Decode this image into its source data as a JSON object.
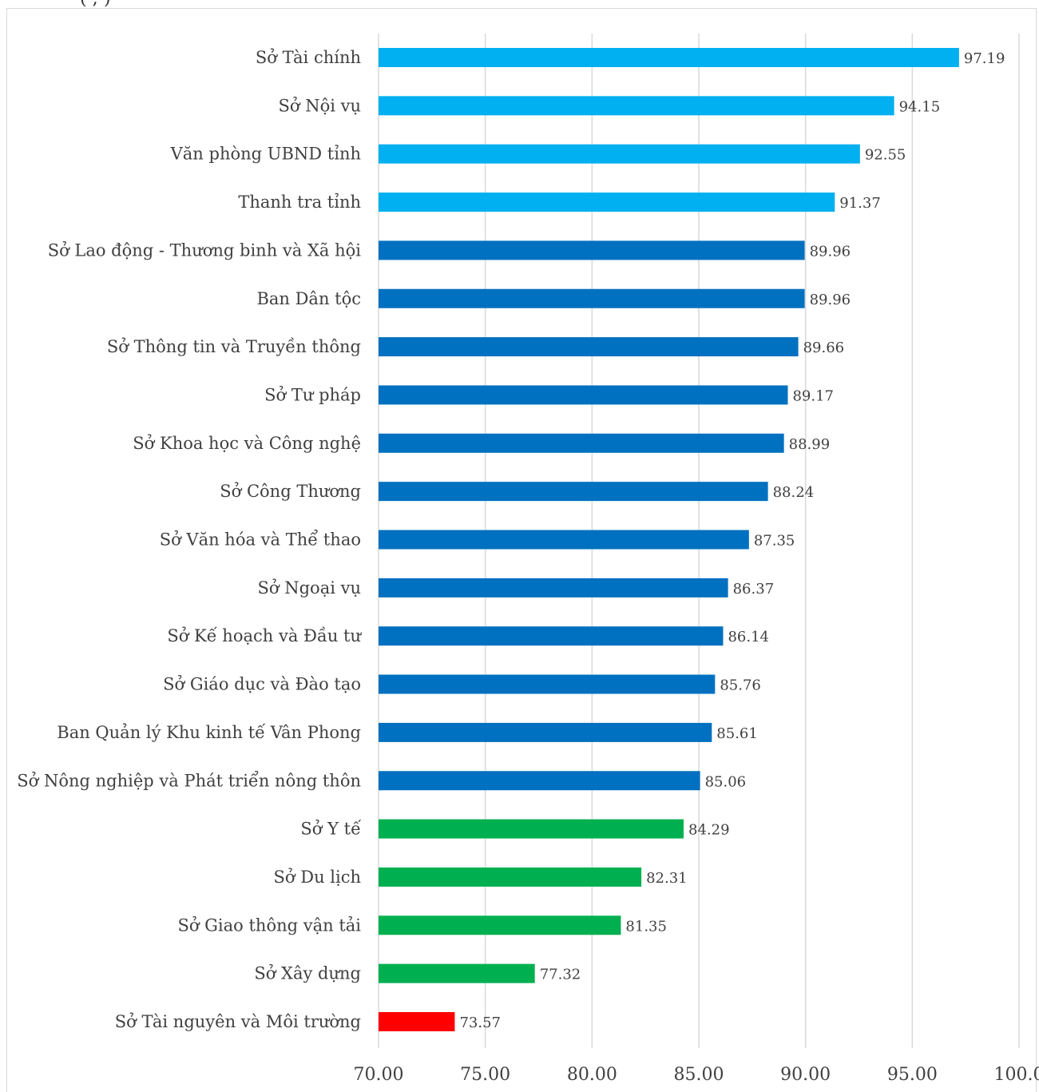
{
  "page": {
    "top_fragment": "(                    ;  )"
  },
  "chart_data": {
    "type": "bar",
    "orientation": "horizontal",
    "categories": [
      "Sở Tài chính",
      "Sở Nội vụ",
      "Văn phòng UBND tỉnh",
      "Thanh tra tỉnh",
      "Sở Lao động - Thương binh và Xã hội",
      "Ban Dân tộc",
      "Sở Thông tin và Truyền thông",
      "Sở Tư pháp",
      "Sở Khoa học và Công nghệ",
      "Sở Công Thương",
      "Sở Văn hóa và Thể thao",
      "Sở Ngoại vụ",
      "Sở Kế hoạch và Đầu tư",
      "Sở Giáo dục và Đào tạo",
      "Ban Quản lý Khu kinh tế Vân Phong",
      "Sở Nông nghiệp và Phát triển nông thôn",
      "Sở Y tế",
      "Sở Du lịch",
      "Sở Giao thông vận tải",
      "Sở Xây dựng",
      "Sở Tài nguyên và Môi trường"
    ],
    "values": [
      97.19,
      94.15,
      92.55,
      91.37,
      89.96,
      89.96,
      89.66,
      89.17,
      88.99,
      88.24,
      87.35,
      86.37,
      86.14,
      85.76,
      85.61,
      85.06,
      84.29,
      82.31,
      81.35,
      77.32,
      73.57
    ],
    "value_labels": [
      "97.19",
      "94.15",
      "92.55",
      "91.37",
      "89.96",
      "89.96",
      "89.66",
      "89.17",
      "88.99",
      "88.24",
      "87.35",
      "86.37",
      "86.14",
      "85.76",
      "85.61",
      "85.06",
      "84.29",
      "82.31",
      "81.35",
      "77.32",
      "73.57"
    ],
    "bar_colors": [
      "#00b0f0",
      "#00b0f0",
      "#00b0f0",
      "#00b0f0",
      "#0070c0",
      "#0070c0",
      "#0070c0",
      "#0070c0",
      "#0070c0",
      "#0070c0",
      "#0070c0",
      "#0070c0",
      "#0070c0",
      "#0070c0",
      "#0070c0",
      "#0070c0",
      "#00b050",
      "#00b050",
      "#00b050",
      "#00b050",
      "#ff0000"
    ],
    "xlim": [
      70,
      100
    ],
    "xticks": [
      "70.00",
      "75.00",
      "80.00",
      "85.00",
      "90.00",
      "95.00",
      "100.0"
    ],
    "grid": "vertical",
    "title": "",
    "xlabel": "",
    "ylabel": ""
  }
}
